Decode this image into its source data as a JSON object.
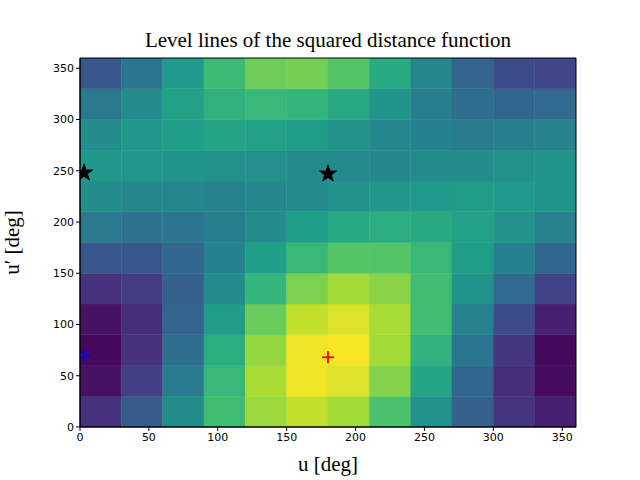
{
  "chart_data": {
    "type": "heatmap",
    "title": "Level lines of the squared distance function",
    "x_label": "u [deg]",
    "y_label": "u′ [deg]",
    "xlim": [
      0,
      360
    ],
    "ylim": [
      0,
      360
    ],
    "xticks": [
      0,
      50,
      100,
      150,
      200,
      250,
      300,
      350
    ],
    "yticks": [
      0,
      50,
      100,
      150,
      200,
      250,
      300,
      350
    ],
    "grid": false,
    "cells": {
      "x": [
        15,
        45,
        75,
        105,
        135,
        165,
        195,
        225,
        255,
        285,
        315,
        345
      ],
      "y": [
        15,
        45,
        75,
        105,
        135,
        165,
        195,
        225,
        255,
        285,
        315,
        345
      ],
      "z": [
        [
          0.14,
          0.29,
          0.49,
          0.69,
          0.85,
          0.91,
          0.86,
          0.71,
          0.51,
          0.31,
          0.15,
          0.09
        ],
        [
          0.05,
          0.19,
          0.42,
          0.67,
          0.87,
          0.98,
          0.95,
          0.81,
          0.58,
          0.33,
          0.13,
          0.03
        ],
        [
          0.02,
          0.14,
          0.36,
          0.62,
          0.84,
          0.98,
          0.99,
          0.86,
          0.64,
          0.39,
          0.16,
          0.02
        ],
        [
          0.05,
          0.13,
          0.32,
          0.55,
          0.77,
          0.91,
          0.95,
          0.87,
          0.69,
          0.45,
          0.23,
          0.09
        ],
        [
          0.14,
          0.18,
          0.31,
          0.48,
          0.66,
          0.8,
          0.86,
          0.82,
          0.69,
          0.52,
          0.34,
          0.2
        ],
        [
          0.27,
          0.27,
          0.33,
          0.44,
          0.56,
          0.67,
          0.73,
          0.73,
          0.67,
          0.56,
          0.44,
          0.33
        ],
        [
          0.4,
          0.38,
          0.39,
          0.43,
          0.49,
          0.55,
          0.6,
          0.62,
          0.61,
          0.57,
          0.51,
          0.45
        ],
        [
          0.49,
          0.47,
          0.46,
          0.45,
          0.47,
          0.49,
          0.51,
          0.53,
          0.54,
          0.55,
          0.54,
          0.52
        ],
        [
          0.53,
          0.53,
          0.52,
          0.51,
          0.5,
          0.48,
          0.48,
          0.47,
          0.48,
          0.49,
          0.51,
          0.52
        ],
        [
          0.49,
          0.53,
          0.56,
          0.58,
          0.57,
          0.55,
          0.51,
          0.47,
          0.44,
          0.42,
          0.43,
          0.45
        ],
        [
          0.4,
          0.48,
          0.57,
          0.64,
          0.67,
          0.66,
          0.6,
          0.52,
          0.43,
          0.36,
          0.33,
          0.34
        ],
        [
          0.27,
          0.39,
          0.54,
          0.68,
          0.78,
          0.79,
          0.73,
          0.61,
          0.46,
          0.32,
          0.23,
          0.21
        ]
      ],
      "zlim": [
        0,
        1
      ]
    },
    "series": [
      {
        "type": "scatter",
        "marker": "star",
        "color": "#000000",
        "x": [
          3,
          180
        ],
        "values": [
          248,
          247
        ]
      },
      {
        "type": "scatter",
        "marker": "plus",
        "color": "#0000ff",
        "x": [
          3
        ],
        "values": [
          70
        ]
      },
      {
        "type": "scatter",
        "marker": "plus",
        "color": "#ff0000",
        "x": [
          180
        ],
        "values": [
          68
        ]
      }
    ]
  }
}
